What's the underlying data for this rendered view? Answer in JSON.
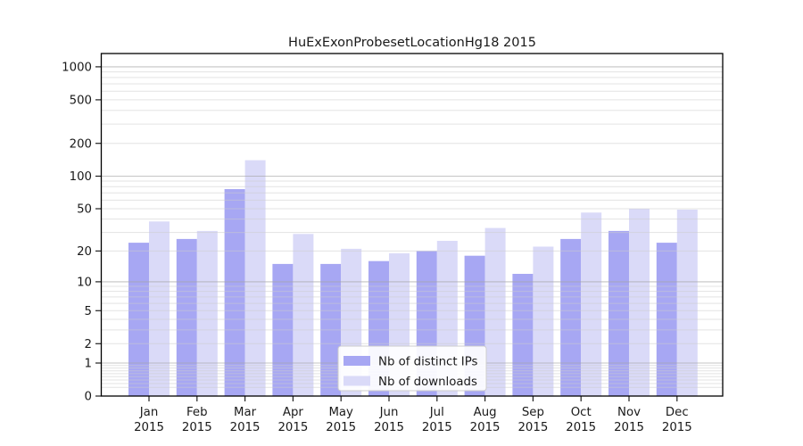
{
  "title": "HuExExonProbesetLocationHg18 2015",
  "chart_data": {
    "type": "bar",
    "title": "HuExExonProbesetLocationHg18 2015",
    "categories": [
      "Jan 2015",
      "Feb 2015",
      "Mar 2015",
      "Apr 2015",
      "May 2015",
      "Jun 2015",
      "Jul 2015",
      "Aug 2015",
      "Sep 2015",
      "Oct 2015",
      "Nov 2015",
      "Dec 2015"
    ],
    "series": [
      {
        "name": "Nb of distinct IPs",
        "color": "#a7a7f3",
        "values": [
          24,
          26,
          76,
          15,
          15,
          16,
          20,
          18,
          12,
          26,
          31,
          24
        ]
      },
      {
        "name": "Nb of downloads",
        "color": "#dadaf8",
        "values": [
          38,
          31,
          140,
          29,
          21,
          19,
          25,
          33,
          22,
          46,
          50,
          49
        ]
      }
    ],
    "yscale": "log1p",
    "yticks": [
      0,
      1,
      2,
      5,
      10,
      20,
      50,
      100,
      200,
      500,
      1000
    ],
    "ylim": [
      0,
      1300
    ],
    "xlabel": "",
    "ylabel": "",
    "grid": "on",
    "grid_major_at": [
      1,
      10,
      100,
      1000
    ],
    "legend_position": "inside-bottom-center",
    "colors": {
      "axis": "#000000",
      "grid_major": "#a6a6a6",
      "grid_minor": "#cccccc",
      "text": "#1a1a1a",
      "background": "#ffffff"
    }
  }
}
